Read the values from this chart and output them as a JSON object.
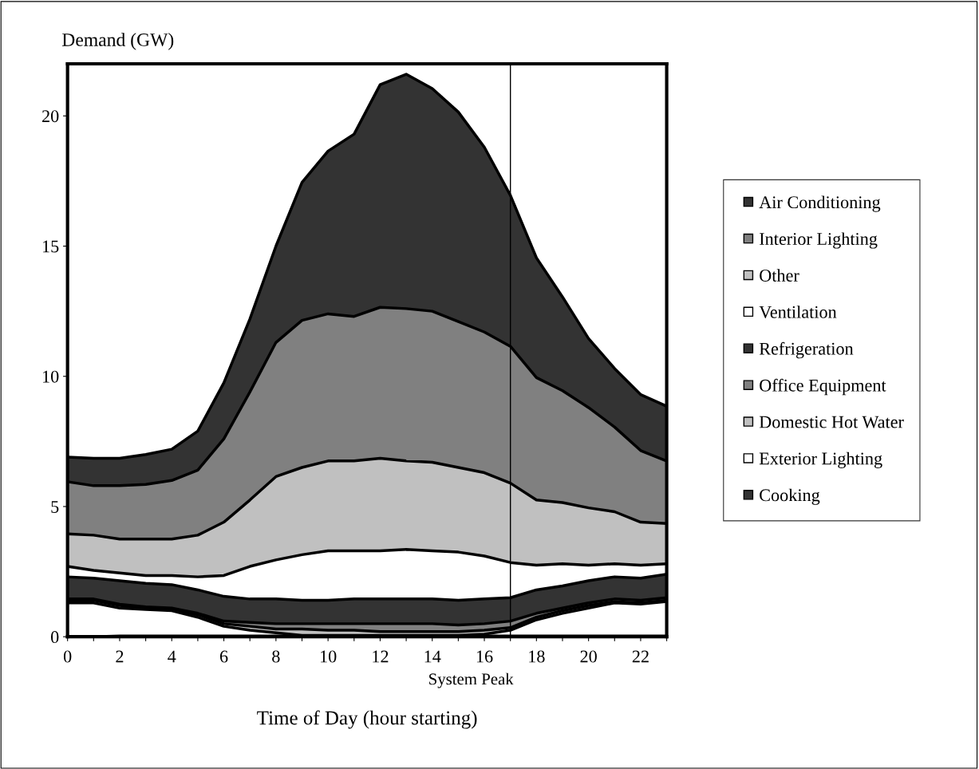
{
  "chart_data": {
    "type": "area",
    "stacked": true,
    "x": [
      0,
      1,
      2,
      3,
      4,
      5,
      6,
      7,
      8,
      9,
      10,
      11,
      12,
      13,
      14,
      15,
      16,
      17,
      18,
      19,
      20,
      21,
      22,
      23
    ],
    "series": [
      {
        "name": "Cooking",
        "color": "#333333",
        "values": [
          0,
          0,
          0.03,
          0.03,
          0.03,
          0.03,
          0.03,
          0.03,
          0.03,
          0.03,
          0.03,
          0.03,
          0.03,
          0.03,
          0.03,
          0.03,
          0.03,
          0.03,
          0.03,
          0.03,
          0.03,
          0.03,
          0.03,
          0.03
        ]
      },
      {
        "name": "Exterior Lighting",
        "color": "#ffffff",
        "values": [
          1.3,
          1.3,
          1.07,
          1.02,
          0.97,
          0.72,
          0.37,
          0.22,
          0.12,
          0.02,
          0.02,
          0.02,
          0.02,
          0.02,
          0.02,
          0.02,
          0.07,
          0.22,
          0.62,
          0.87,
          1.07,
          1.27,
          1.22,
          1.32
        ]
      },
      {
        "name": "Domestic Hot Water",
        "color": "#c0c0c0",
        "values": [
          0.1,
          0.1,
          0.1,
          0.05,
          0.05,
          0.1,
          0.1,
          0.15,
          0.15,
          0.25,
          0.2,
          0.2,
          0.15,
          0.15,
          0.15,
          0.15,
          0.15,
          0.1,
          0.1,
          0.1,
          0.1,
          0.05,
          0.05,
          0.05
        ]
      },
      {
        "name": "Office Equipment",
        "color": "#808080",
        "values": [
          0.05,
          0.05,
          0.05,
          0.05,
          0.05,
          0.05,
          0.1,
          0.15,
          0.2,
          0.2,
          0.25,
          0.25,
          0.3,
          0.3,
          0.3,
          0.25,
          0.25,
          0.25,
          0.15,
          0.1,
          0.1,
          0.1,
          0.1,
          0.1
        ]
      },
      {
        "name": "Refrigeration",
        "color": "#333333",
        "values": [
          0.85,
          0.8,
          0.9,
          0.9,
          0.9,
          0.9,
          0.95,
          0.9,
          0.95,
          0.9,
          0.9,
          0.95,
          0.95,
          0.95,
          0.95,
          0.95,
          0.95,
          0.9,
          0.9,
          0.85,
          0.85,
          0.85,
          0.85,
          0.9
        ]
      },
      {
        "name": "Ventilation",
        "color": "#ffffff",
        "values": [
          0.4,
          0.3,
          0.3,
          0.3,
          0.35,
          0.5,
          0.8,
          1.25,
          1.5,
          1.75,
          1.9,
          1.85,
          1.85,
          1.9,
          1.85,
          1.85,
          1.65,
          1.35,
          0.95,
          0.85,
          0.6,
          0.5,
          0.5,
          0.4
        ]
      },
      {
        "name": "Other",
        "color": "#c0c0c0",
        "values": [
          1.25,
          1.35,
          1.3,
          1.4,
          1.4,
          1.6,
          2.05,
          2.55,
          3.2,
          3.35,
          3.45,
          3.45,
          3.55,
          3.4,
          3.4,
          3.25,
          3.2,
          3.05,
          2.5,
          2.35,
          2.2,
          2.0,
          1.65,
          1.55
        ]
      },
      {
        "name": "Interior Lighting",
        "color": "#808080",
        "values": [
          2.0,
          1.9,
          2.05,
          2.1,
          2.25,
          2.5,
          3.2,
          4.15,
          5.15,
          5.65,
          5.65,
          5.55,
          5.8,
          5.85,
          5.8,
          5.6,
          5.4,
          5.25,
          4.7,
          4.3,
          3.85,
          3.25,
          2.75,
          2.4
        ]
      },
      {
        "name": "Air Conditioning",
        "color": "#333333",
        "values": [
          0.95,
          1.05,
          1.05,
          1.15,
          1.2,
          1.5,
          2.15,
          2.8,
          3.7,
          5.3,
          6.25,
          7.0,
          8.55,
          9.0,
          8.55,
          8.05,
          7.1,
          5.8,
          4.6,
          3.6,
          2.65,
          2.25,
          2.15,
          2.1
        ]
      }
    ],
    "ylabel": "Demand (GW)",
    "xlabel": "Time of Day (hour starting)",
    "xlim": [
      0,
      23
    ],
    "ylim": [
      0,
      22
    ],
    "xticks": [
      0,
      {
        "value": 1,
        "label": null
      },
      2,
      {
        "value": 3,
        "label": null
      },
      4,
      {
        "value": 5,
        "label": null
      },
      6,
      {
        "value": 7,
        "label": null
      },
      8,
      {
        "value": 9,
        "label": null
      },
      10,
      {
        "value": 11,
        "label": null
      },
      12,
      {
        "value": 13,
        "label": null
      },
      14,
      {
        "value": 15,
        "label": null
      },
      16,
      {
        "value": 17,
        "label": null
      },
      18,
      {
        "value": 19,
        "label": null
      },
      20,
      {
        "value": 21,
        "label": null
      },
      22,
      {
        "value": 23,
        "label": null
      }
    ],
    "yticks": [
      0,
      5,
      10,
      15,
      20
    ],
    "ref_lines": [
      {
        "axis": "x",
        "value": 17,
        "color": "#000000"
      }
    ],
    "annotations": [
      "System Peak"
    ],
    "legend": "right",
    "grid": false
  }
}
